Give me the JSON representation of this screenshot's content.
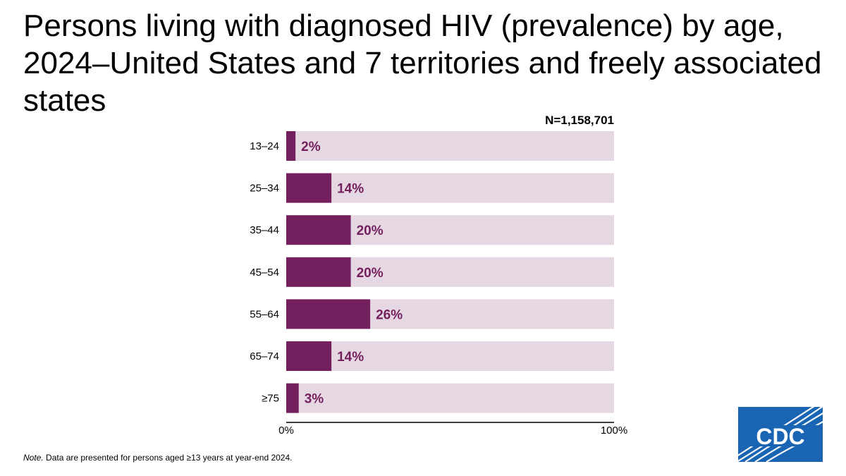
{
  "chart_data": {
    "type": "bar",
    "orientation": "horizontal",
    "title": "Persons living with diagnosed HIV (prevalence) by age, 2024–United States and 7 territories and freely associated states",
    "total_label": "N=1,158,701",
    "categories": [
      "13–24",
      "25–34",
      "35–44",
      "45–54",
      "55–64",
      "65–74",
      "≥75"
    ],
    "values": [
      2,
      14,
      20,
      20,
      26,
      14,
      3
    ],
    "value_labels": [
      "2%",
      "14%",
      "20%",
      "20%",
      "26%",
      "14%",
      "3%"
    ],
    "xlim": [
      0,
      100
    ],
    "x_ticks": [
      "0%",
      "100%"
    ],
    "grid": false,
    "legend": "none",
    "colors": {
      "bar": "#74205e",
      "track": "#e6d8e2",
      "value_label": "#74205e"
    }
  },
  "note": {
    "label": "Note.",
    "text": " Data are presented for persons aged ≥13 years at year-end 2024."
  },
  "logo": {
    "text": "CDC",
    "icon": "cdc-logo-icon",
    "color": "#1a64b4"
  }
}
